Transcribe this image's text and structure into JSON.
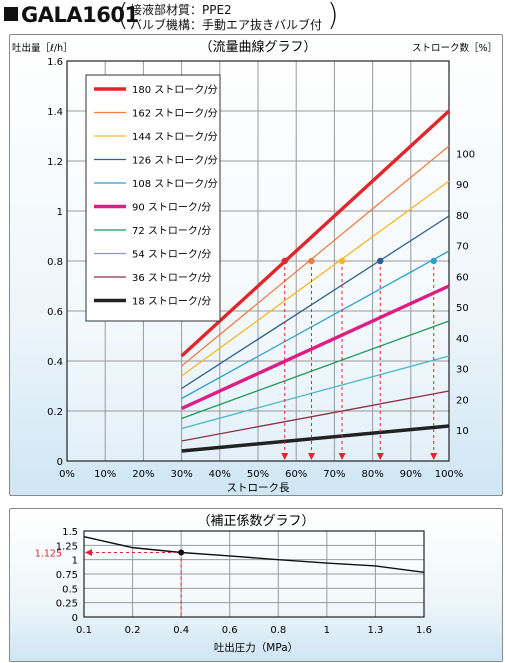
{
  "header": {
    "model": "GALA1601",
    "material": "接液部材質：PPE2",
    "function": "バルブ機構：手動エア抜きバルブ付"
  },
  "colors": {
    "grid": "#9a9a9a",
    "bg_gradient_bottom": "#cfe6f4",
    "axis": "#222222"
  },
  "chart_data": [
    {
      "type": "line",
      "title": "（流量曲線グラフ）",
      "ylabel": "吐出量［ℓ/h］",
      "xlabel": "ストローク長",
      "y2label": "ストローク数［%］",
      "xlim": [
        0,
        100
      ],
      "ylim": [
        0,
        1.6
      ],
      "y2lim": [
        0,
        130
      ],
      "x_ticks": [
        "0%",
        "10%",
        "20%",
        "30%",
        "40%",
        "50%",
        "60%",
        "70%",
        "80%",
        "90%",
        "100%"
      ],
      "x_tick_values": [
        0,
        10,
        20,
        30,
        40,
        50,
        60,
        70,
        80,
        90,
        100
      ],
      "y_ticks": [
        "0",
        "0.2",
        "0.4",
        "0.6",
        "0.8",
        "1",
        "1.2",
        "1.4",
        "1.6"
      ],
      "y_tick_values": [
        0,
        0.2,
        0.4,
        0.6,
        0.8,
        1,
        1.2,
        1.4,
        1.6
      ],
      "y2_ticks": [
        "10",
        "20",
        "30",
        "40",
        "50",
        "60",
        "70",
        "80",
        "90",
        "100"
      ],
      "y2_tick_values": [
        10,
        20,
        30,
        40,
        50,
        60,
        70,
        80,
        90,
        100
      ],
      "legend_position": "top-left",
      "series": [
        {
          "name": "180 ストローク/分",
          "color": "#e0262b",
          "bold": true,
          "x": [
            30,
            100
          ],
          "y": [
            0.42,
            1.4
          ]
        },
        {
          "name": "162 ストローク/分",
          "color": "#ec7f45",
          "bold": false,
          "x": [
            30,
            100
          ],
          "y": [
            0.38,
            1.26
          ]
        },
        {
          "name": "144 ストローク/分",
          "color": "#f4b728",
          "bold": false,
          "x": [
            30,
            100
          ],
          "y": [
            0.34,
            1.12
          ]
        },
        {
          "name": "126 ストローク/分",
          "color": "#2a5e8c",
          "bold": false,
          "x": [
            30,
            100
          ],
          "y": [
            0.29,
            0.98
          ]
        },
        {
          "name": "108 ストローク/分",
          "color": "#2aa0cf",
          "bold": false,
          "x": [
            30,
            100
          ],
          "y": [
            0.25,
            0.84
          ]
        },
        {
          "name": "90 ストローク/分",
          "color": "#e01c86",
          "bold": true,
          "x": [
            30,
            100
          ],
          "y": [
            0.21,
            0.7
          ]
        },
        {
          "name": "72 ストローク/分",
          "color": "#1e9a57",
          "bold": false,
          "x": [
            30,
            100
          ],
          "y": [
            0.17,
            0.56
          ]
        },
        {
          "name": "54 ストローク/分",
          "color": "#49b8c9",
          "bold": false,
          "x": [
            30,
            100
          ],
          "y": [
            0.13,
            0.42
          ]
        },
        {
          "name": "36 ストローク/分",
          "color": "#8e2f44",
          "bold": false,
          "x": [
            30,
            100
          ],
          "y": [
            0.08,
            0.28
          ]
        },
        {
          "name": "18 ストローク/分",
          "color": "#222222",
          "bold": true,
          "x": [
            30,
            100
          ],
          "y": [
            0.04,
            0.14
          ]
        }
      ],
      "markers": [
        {
          "x": 57,
          "y": 0.8,
          "color": "#e0262b"
        },
        {
          "x": 64,
          "y": 0.8,
          "color": "#ec7f45"
        },
        {
          "x": 72,
          "y": 0.8,
          "color": "#f4b728"
        },
        {
          "x": 82,
          "y": 0.8,
          "color": "#2a5e8c"
        },
        {
          "x": 96,
          "y": 0.8,
          "color": "#2aa0cf"
        }
      ]
    },
    {
      "type": "line",
      "title": "（補正係数グラフ）",
      "xlabel": "吐出圧力（MPa）",
      "xlim": [
        0.1,
        1.6
      ],
      "ylim": [
        0,
        1.5
      ],
      "x_ticks": [
        "0.1",
        "0.2",
        "0.4",
        "0.6",
        "0.8",
        "1",
        "1.3",
        "1.6"
      ],
      "x_tick_values": [
        0.1,
        0.2,
        0.4,
        0.6,
        0.8,
        1,
        1.3,
        1.6
      ],
      "y_ticks": [
        "0",
        "0.25",
        "0.5",
        "0.75",
        "1",
        "1.25",
        "1.5"
      ],
      "y_tick_values": [
        0,
        0.25,
        0.5,
        0.75,
        1,
        1.25,
        1.5
      ],
      "series": [
        {
          "name": "",
          "color": "#111111",
          "x": [
            0.1,
            0.2,
            0.4,
            0.6,
            0.8,
            1.0,
            1.3,
            1.6
          ],
          "y": [
            1.4,
            1.21,
            1.125,
            1.065,
            1.0,
            0.94,
            0.89,
            0.78
          ]
        }
      ],
      "highlight": {
        "x": 0.4,
        "y": 1.125,
        "label": "1.125",
        "color": "#e0262b"
      }
    }
  ]
}
